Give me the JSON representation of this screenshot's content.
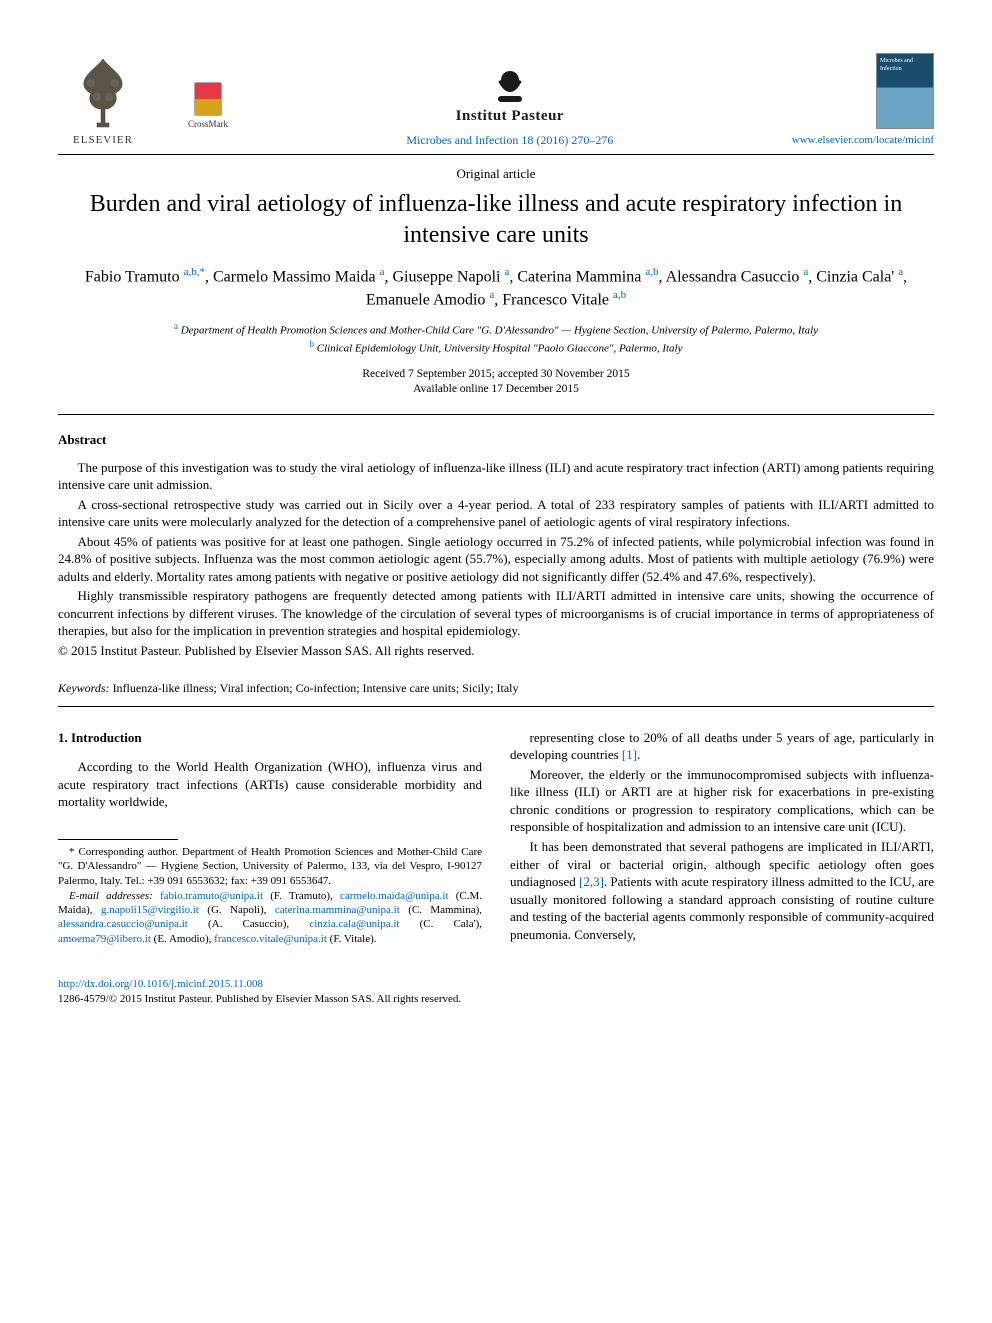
{
  "header": {
    "publisher": "ELSEVIER",
    "crossmark": "CrossMark",
    "institute": "Institut Pasteur",
    "citation": "Microbes and Infection 18 (2016) 270–276",
    "journal_cover_title": "Microbes and Infection",
    "journal_link": "www.elsevier.com/locate/micinf"
  },
  "article": {
    "type": "Original article",
    "title": "Burden and viral aetiology of influenza-like illness and acute respiratory infection in intensive care units",
    "authors_html": "Fabio Tramuto <span class='sup'>a,b,*</span>, Carmelo Massimo Maida <span class='sup'>a</span>, Giuseppe Napoli <span class='sup'>a</span>, Caterina Mammina <span class='sup'>a,b</span>, Alessandra Casuccio <span class='sup'>a</span>, Cinzia Cala' <span class='sup'>a</span>, Emanuele Amodio <span class='sup'>a</span>, Francesco Vitale <span class='sup'>a,b</span>",
    "affiliations": [
      {
        "sup": "a",
        "text": "Department of Health Promotion Sciences and Mother-Child Care \"G. D'Alessandro\" — Hygiene Section, University of Palermo, Palermo, Italy"
      },
      {
        "sup": "b",
        "text": "Clinical Epidemiology Unit, University Hospital \"Paolo Giaccone\", Palermo, Italy"
      }
    ],
    "dates": {
      "received_accepted": "Received 7 September 2015; accepted 30 November 2015",
      "online": "Available online 17 December 2015"
    }
  },
  "abstract": {
    "heading": "Abstract",
    "paragraphs": [
      "The purpose of this investigation was to study the viral aetiology of influenza-like illness (ILI) and acute respiratory tract infection (ARTI) among patients requiring intensive care unit admission.",
      "A cross-sectional retrospective study was carried out in Sicily over a 4-year period. A total of 233 respiratory samples of patients with ILI/ARTI admitted to intensive care units were molecularly analyzed for the detection of a comprehensive panel of aetiologic agents of viral respiratory infections.",
      "About 45% of patients was positive for at least one pathogen. Single aetiology occurred in 75.2% of infected patients, while polymicrobial infection was found in 24.8% of positive subjects. Influenza was the most common aetiologic agent (55.7%), especially among adults. Most of patients with multiple aetiology (76.9%) were adults and elderly. Mortality rates among patients with negative or positive aetiology did not significantly differ (52.4% and 47.6%, respectively).",
      "Highly transmissible respiratory pathogens are frequently detected among patients with ILI/ARTI admitted in intensive care units, showing the occurrence of concurrent infections by different viruses. The knowledge of the circulation of several types of microorganisms is of crucial importance in terms of appropriateness of therapies, but also for the implication in prevention strategies and hospital epidemiology."
    ],
    "copyright": "© 2015 Institut Pasteur. Published by Elsevier Masson SAS. All rights reserved."
  },
  "keywords": {
    "label": "Keywords:",
    "text": " Influenza-like illness; Viral infection; Co-infection; Intensive care units; Sicily; Italy"
  },
  "intro": {
    "heading": "1. Introduction",
    "left_p1": "According to the World Health Organization (WHO), influenza virus and acute respiratory tract infections (ARTIs) cause considerable morbidity and mortality worldwide,",
    "right_paragraphs": [
      "representing close to 20% of all deaths under 5 years of age, particularly in developing countries [1].",
      "Moreover, the elderly or the immunocompromised subjects with influenza-like illness (ILI) or ARTI are at higher risk for exacerbations in pre-existing chronic conditions or progression to respiratory complications, which can be responsible of hospitalization and admission to an intensive care unit (ICU).",
      "It has been demonstrated that several pathogens are implicated in ILI/ARTI, either of viral or bacterial origin, although specific aetiology often goes undiagnosed [2,3]. Patients with acute respiratory illness admitted to the ICU, are usually monitored following a standard approach consisting of routine culture and testing of the bacterial agents commonly responsible of community-acquired pneumonia. Conversely,"
    ]
  },
  "footnotes": {
    "corresponding": "* Corresponding author. Department of Health Promotion Sciences and Mother-Child Care \"G. D'Alessandro\" — Hygiene Section, University of Palermo, 133, via del Vespro, I-90127 Palermo, Italy. Tel.: +39 091 6553632; fax: +39 091 6553647.",
    "email_label": "E-mail addresses:",
    "emails": [
      {
        "addr": "fabio.tramuto@unipa.it",
        "who": "(F. Tramuto)"
      },
      {
        "addr": "carmelo.maida@unipa.it",
        "who": "(C.M. Maida)"
      },
      {
        "addr": "g.napoli15@virgilio.it",
        "who": "(G. Napoli)"
      },
      {
        "addr": "caterina.mammina@unipa.it",
        "who": "(C. Mammina)"
      },
      {
        "addr": "alessandra.casuccio@unipa.it",
        "who": "(A. Casuccio)"
      },
      {
        "addr": "cinzia.cala@unipa.it",
        "who": "(C. Cala')"
      },
      {
        "addr": "amoema79@libero.it",
        "who": "(E. Amodio)"
      },
      {
        "addr": "francesco.vitale@unipa.it",
        "who": "(F. Vitale)."
      }
    ]
  },
  "doi": {
    "url": "http://dx.doi.org/10.1016/j.micinf.2015.11.008",
    "issn_line": "1286-4579/© 2015 Institut Pasteur. Published by Elsevier Masson SAS. All rights reserved."
  },
  "colors": {
    "link": "#0066cc",
    "text": "#000000",
    "background": "#ffffff",
    "rule": "#000000"
  }
}
